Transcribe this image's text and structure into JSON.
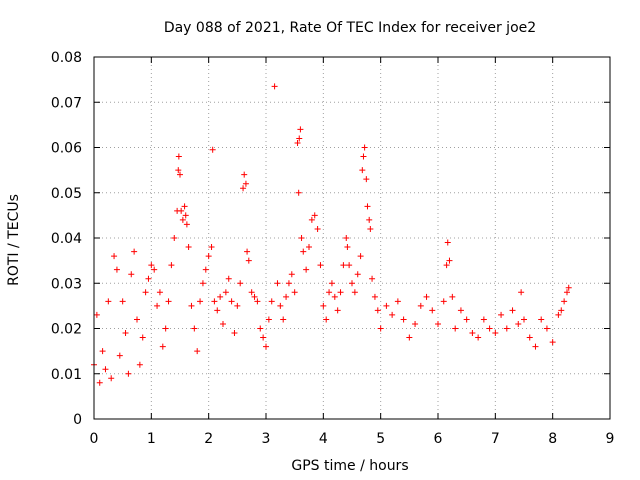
{
  "chart_data": {
    "type": "scatter",
    "title": "Day 088 of 2021, Rate Of TEC Index for receiver joe2",
    "xlabel": "GPS time / hours",
    "ylabel": "ROTI / TECUs",
    "xlim": [
      0,
      9
    ],
    "ylim": [
      0,
      0.08
    ],
    "x_ticks": [
      "0",
      "1",
      "2",
      "3",
      "4",
      "5",
      "6",
      "7",
      "8",
      "9"
    ],
    "y_ticks": [
      "0",
      "0.01",
      "0.02",
      "0.03",
      "0.04",
      "0.05",
      "0.06",
      "0.07",
      "0.08"
    ],
    "grid": true,
    "marker": "+",
    "color": "#ff0000",
    "series": [
      {
        "name": "ROTI",
        "points": [
          [
            0.0,
            0.012
          ],
          [
            0.05,
            0.023
          ],
          [
            0.1,
            0.008
          ],
          [
            0.15,
            0.015
          ],
          [
            0.2,
            0.011
          ],
          [
            0.25,
            0.026
          ],
          [
            0.3,
            0.009
          ],
          [
            0.35,
            0.036
          ],
          [
            0.4,
            0.033
          ],
          [
            0.45,
            0.014
          ],
          [
            0.5,
            0.026
          ],
          [
            0.55,
            0.019
          ],
          [
            0.6,
            0.01
          ],
          [
            0.65,
            0.032
          ],
          [
            0.7,
            0.037
          ],
          [
            0.75,
            0.022
          ],
          [
            0.8,
            0.012
          ],
          [
            0.85,
            0.018
          ],
          [
            0.9,
            0.028
          ],
          [
            0.95,
            0.031
          ],
          [
            1.0,
            0.034
          ],
          [
            1.05,
            0.033
          ],
          [
            1.1,
            0.025
          ],
          [
            1.15,
            0.028
          ],
          [
            1.2,
            0.016
          ],
          [
            1.25,
            0.02
          ],
          [
            1.3,
            0.026
          ],
          [
            1.35,
            0.034
          ],
          [
            1.4,
            0.04
          ],
          [
            1.45,
            0.046
          ],
          [
            1.47,
            0.055
          ],
          [
            1.48,
            0.058
          ],
          [
            1.5,
            0.054
          ],
          [
            1.52,
            0.046
          ],
          [
            1.55,
            0.044
          ],
          [
            1.58,
            0.047
          ],
          [
            1.6,
            0.045
          ],
          [
            1.62,
            0.043
          ],
          [
            1.65,
            0.038
          ],
          [
            1.7,
            0.025
          ],
          [
            1.75,
            0.02
          ],
          [
            1.8,
            0.015
          ],
          [
            1.85,
            0.026
          ],
          [
            1.9,
            0.03
          ],
          [
            1.95,
            0.033
          ],
          [
            2.0,
            0.036
          ],
          [
            2.05,
            0.038
          ],
          [
            2.07,
            0.0595
          ],
          [
            2.1,
            0.026
          ],
          [
            2.15,
            0.024
          ],
          [
            2.2,
            0.027
          ],
          [
            2.25,
            0.021
          ],
          [
            2.3,
            0.028
          ],
          [
            2.35,
            0.031
          ],
          [
            2.4,
            0.026
          ],
          [
            2.45,
            0.019
          ],
          [
            2.5,
            0.025
          ],
          [
            2.55,
            0.03
          ],
          [
            2.6,
            0.051
          ],
          [
            2.62,
            0.054
          ],
          [
            2.65,
            0.052
          ],
          [
            2.67,
            0.037
          ],
          [
            2.7,
            0.035
          ],
          [
            2.75,
            0.028
          ],
          [
            2.8,
            0.027
          ],
          [
            2.85,
            0.026
          ],
          [
            2.9,
            0.02
          ],
          [
            2.95,
            0.018
          ],
          [
            3.0,
            0.016
          ],
          [
            3.05,
            0.022
          ],
          [
            3.1,
            0.026
          ],
          [
            3.15,
            0.0735
          ],
          [
            3.2,
            0.03
          ],
          [
            3.25,
            0.025
          ],
          [
            3.3,
            0.022
          ],
          [
            3.35,
            0.027
          ],
          [
            3.4,
            0.03
          ],
          [
            3.45,
            0.032
          ],
          [
            3.5,
            0.028
          ],
          [
            3.55,
            0.061
          ],
          [
            3.58,
            0.062
          ],
          [
            3.6,
            0.064
          ],
          [
            3.57,
            0.05
          ],
          [
            3.62,
            0.04
          ],
          [
            3.65,
            0.037
          ],
          [
            3.7,
            0.033
          ],
          [
            3.75,
            0.038
          ],
          [
            3.8,
            0.044
          ],
          [
            3.85,
            0.045
          ],
          [
            3.9,
            0.042
          ],
          [
            3.95,
            0.034
          ],
          [
            4.0,
            0.025
          ],
          [
            4.05,
            0.022
          ],
          [
            4.1,
            0.028
          ],
          [
            4.15,
            0.03
          ],
          [
            4.2,
            0.027
          ],
          [
            4.25,
            0.024
          ],
          [
            4.3,
            0.028
          ],
          [
            4.35,
            0.034
          ],
          [
            4.4,
            0.04
          ],
          [
            4.42,
            0.038
          ],
          [
            4.45,
            0.034
          ],
          [
            4.5,
            0.03
          ],
          [
            4.55,
            0.028
          ],
          [
            4.6,
            0.032
          ],
          [
            4.65,
            0.036
          ],
          [
            4.68,
            0.055
          ],
          [
            4.7,
            0.058
          ],
          [
            4.72,
            0.06
          ],
          [
            4.75,
            0.053
          ],
          [
            4.77,
            0.047
          ],
          [
            4.8,
            0.044
          ],
          [
            4.82,
            0.042
          ],
          [
            4.85,
            0.031
          ],
          [
            4.9,
            0.027
          ],
          [
            4.95,
            0.024
          ],
          [
            5.0,
            0.02
          ],
          [
            5.1,
            0.025
          ],
          [
            5.2,
            0.023
          ],
          [
            5.3,
            0.026
          ],
          [
            5.4,
            0.022
          ],
          [
            5.5,
            0.018
          ],
          [
            5.6,
            0.021
          ],
          [
            5.7,
            0.025
          ],
          [
            5.8,
            0.027
          ],
          [
            5.9,
            0.024
          ],
          [
            6.0,
            0.021
          ],
          [
            6.1,
            0.026
          ],
          [
            6.15,
            0.034
          ],
          [
            6.17,
            0.039
          ],
          [
            6.2,
            0.035
          ],
          [
            6.25,
            0.027
          ],
          [
            6.3,
            0.02
          ],
          [
            6.4,
            0.024
          ],
          [
            6.5,
            0.022
          ],
          [
            6.6,
            0.019
          ],
          [
            6.7,
            0.018
          ],
          [
            6.8,
            0.022
          ],
          [
            6.9,
            0.02
          ],
          [
            7.0,
            0.019
          ],
          [
            7.1,
            0.023
          ],
          [
            7.2,
            0.02
          ],
          [
            7.3,
            0.024
          ],
          [
            7.4,
            0.021
          ],
          [
            7.45,
            0.028
          ],
          [
            7.5,
            0.022
          ],
          [
            7.6,
            0.018
          ],
          [
            7.7,
            0.016
          ],
          [
            7.8,
            0.022
          ],
          [
            7.9,
            0.02
          ],
          [
            8.0,
            0.017
          ],
          [
            8.1,
            0.023
          ],
          [
            8.15,
            0.024
          ],
          [
            8.2,
            0.026
          ],
          [
            8.25,
            0.028
          ],
          [
            8.28,
            0.029
          ]
        ]
      }
    ]
  }
}
